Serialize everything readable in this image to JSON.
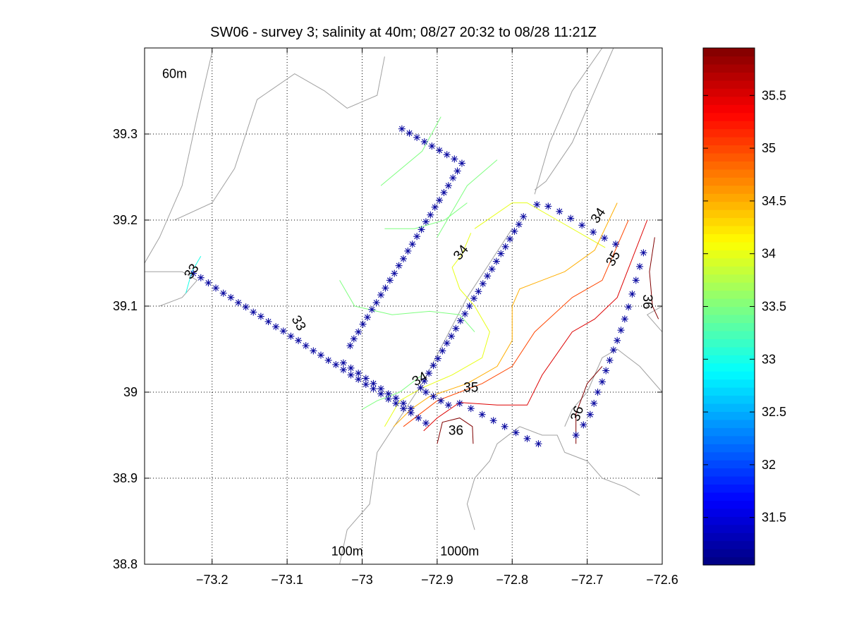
{
  "chart_data": {
    "type": "contour",
    "title": "SW06 - survey 3; salinity at 40m; 08/27 20:32 to 08/28 11:21Z",
    "xlabel": "",
    "ylabel": "",
    "xlim": [
      -73.29,
      -72.6
    ],
    "ylim": [
      38.8,
      39.4
    ],
    "x_ticks": [
      -73.2,
      -73.1,
      -73.0,
      -72.9,
      -72.8,
      -72.7,
      -72.6
    ],
    "x_tick_labels": [
      "−73.2",
      "−73.1",
      "−73",
      "−72.9",
      "−72.8",
      "−72.7",
      "−72.6"
    ],
    "y_ticks": [
      38.8,
      38.9,
      39.0,
      39.1,
      39.2,
      39.3
    ],
    "y_tick_labels": [
      "38.8",
      "38.9",
      "39",
      "39.1",
      "39.2",
      "39.3"
    ],
    "grid": true,
    "colorbar": {
      "range": [
        31.05,
        35.95
      ],
      "ticks": [
        31.5,
        32,
        32.5,
        33,
        33.5,
        34,
        34.5,
        35,
        35.5
      ],
      "tick_labels": [
        "31.5",
        "32",
        "32.5",
        "33",
        "33.5",
        "34",
        "34.5",
        "35",
        "35.5"
      ],
      "colormap": "jet",
      "levels": 64
    },
    "depth_labels": [
      {
        "text": "60m",
        "x": -73.25,
        "y": 39.37
      },
      {
        "text": "100m",
        "x": -73.02,
        "y": 38.815
      },
      {
        "text": "1000m",
        "x": -72.87,
        "y": 38.815
      }
    ],
    "stations": [
      [
        -73.225,
        39.138
      ],
      [
        -73.215,
        39.133
      ],
      [
        -73.205,
        39.127
      ],
      [
        -73.195,
        39.121
      ],
      [
        -73.185,
        39.115
      ],
      [
        -73.175,
        39.11
      ],
      [
        -73.165,
        39.104
      ],
      [
        -73.155,
        39.099
      ],
      [
        -73.145,
        39.093
      ],
      [
        -73.135,
        39.088
      ],
      [
        -73.125,
        39.082
      ],
      [
        -73.115,
        39.076
      ],
      [
        -73.105,
        39.071
      ],
      [
        -73.095,
        39.065
      ],
      [
        -73.085,
        39.06
      ],
      [
        -73.075,
        39.054
      ],
      [
        -73.065,
        39.048
      ],
      [
        -73.055,
        39.043
      ],
      [
        -73.045,
        39.037
      ],
      [
        -73.035,
        39.032
      ],
      [
        -73.025,
        39.026
      ],
      [
        -73.015,
        39.02
      ],
      [
        -73.005,
        39.015
      ],
      [
        -72.995,
        39.009
      ],
      [
        -72.985,
        39.004
      ],
      [
        -72.975,
        38.998
      ],
      [
        -72.965,
        38.992
      ],
      [
        -72.955,
        38.987
      ],
      [
        -72.945,
        38.981
      ],
      [
        -72.935,
        38.976
      ],
      [
        -72.925,
        38.97
      ],
      [
        -72.915,
        38.964
      ],
      [
        -73.025,
        39.034
      ],
      [
        -73.015,
        39.028
      ],
      [
        -73.005,
        39.022
      ],
      [
        -72.995,
        39.016
      ],
      [
        -72.985,
        39.01
      ],
      [
        -72.975,
        39.004
      ],
      [
        -72.965,
        38.998
      ],
      [
        -72.955,
        38.993
      ],
      [
        -72.945,
        38.987
      ],
      [
        -72.935,
        38.981
      ],
      [
        -72.922,
        39.005
      ],
      [
        -72.917,
        39.013
      ],
      [
        -72.911,
        39.022
      ],
      [
        -72.905,
        39.031
      ],
      [
        -72.899,
        39.039
      ],
      [
        -72.893,
        39.048
      ],
      [
        -72.887,
        39.057
      ],
      [
        -72.881,
        39.065
      ],
      [
        -72.875,
        39.074
      ],
      [
        -72.869,
        39.083
      ],
      [
        -72.863,
        39.091
      ],
      [
        -72.857,
        39.1
      ],
      [
        -72.851,
        39.109
      ],
      [
        -72.845,
        39.117
      ],
      [
        -72.839,
        39.126
      ],
      [
        -72.833,
        39.135
      ],
      [
        -72.827,
        39.143
      ],
      [
        -72.821,
        39.152
      ],
      [
        -72.815,
        39.161
      ],
      [
        -72.809,
        39.169
      ],
      [
        -72.803,
        39.178
      ],
      [
        -72.797,
        39.187
      ],
      [
        -72.791,
        39.195
      ],
      [
        -72.785,
        39.204
      ],
      [
        -72.767,
        39.218
      ],
      [
        -72.752,
        39.216
      ],
      [
        -72.737,
        39.21
      ],
      [
        -72.722,
        39.202
      ],
      [
        -72.707,
        39.194
      ],
      [
        -72.692,
        39.186
      ],
      [
        -72.677,
        39.179
      ],
      [
        -72.662,
        39.172
      ],
      [
        -72.625,
        39.162
      ],
      [
        -72.63,
        39.146
      ],
      [
        -72.635,
        39.13
      ],
      [
        -72.64,
        39.114
      ],
      [
        -72.645,
        39.099
      ],
      [
        -72.65,
        39.085
      ],
      [
        -72.655,
        39.072
      ],
      [
        -72.66,
        39.06
      ],
      [
        -72.665,
        39.049
      ],
      [
        -72.67,
        39.037
      ],
      [
        -72.675,
        39.025
      ],
      [
        -72.68,
        39.012
      ],
      [
        -72.686,
        39.0
      ],
      [
        -72.691,
        38.987
      ],
      [
        -72.696,
        38.974
      ],
      [
        -72.705,
        38.962
      ],
      [
        -72.715,
        38.95
      ],
      [
        -72.947,
        39.306
      ],
      [
        -72.937,
        39.301
      ],
      [
        -72.927,
        39.296
      ],
      [
        -72.917,
        39.291
      ],
      [
        -72.907,
        39.286
      ],
      [
        -72.897,
        39.281
      ],
      [
        -72.887,
        39.276
      ],
      [
        -72.877,
        39.271
      ],
      [
        -72.867,
        39.266
      ],
      [
        -72.873,
        39.257
      ],
      [
        -72.879,
        39.249
      ],
      [
        -72.885,
        39.24
      ],
      [
        -72.891,
        39.232
      ],
      [
        -72.897,
        39.223
      ],
      [
        -72.903,
        39.215
      ],
      [
        -72.909,
        39.206
      ],
      [
        -72.915,
        39.198
      ],
      [
        -72.921,
        39.189
      ],
      [
        -72.927,
        39.181
      ],
      [
        -72.933,
        39.172
      ],
      [
        -72.939,
        39.164
      ],
      [
        -72.945,
        39.155
      ],
      [
        -72.951,
        39.147
      ],
      [
        -72.957,
        39.138
      ],
      [
        -72.963,
        39.13
      ],
      [
        -72.969,
        39.121
      ],
      [
        -72.975,
        39.113
      ],
      [
        -72.981,
        39.104
      ],
      [
        -72.987,
        39.096
      ],
      [
        -72.993,
        39.087
      ],
      [
        -72.999,
        39.079
      ],
      [
        -73.005,
        39.07
      ],
      [
        -73.011,
        39.062
      ],
      [
        -73.016,
        39.054
      ],
      [
        -72.915,
        39.0
      ],
      [
        -72.905,
        38.995
      ],
      [
        -72.895,
        38.99
      ],
      [
        -72.885,
        38.985
      ],
      [
        -72.87,
        38.987
      ],
      [
        -72.855,
        38.981
      ],
      [
        -72.84,
        38.974
      ],
      [
        -72.825,
        38.967
      ],
      [
        -72.81,
        38.96
      ],
      [
        -72.795,
        38.953
      ],
      [
        -72.78,
        38.946
      ],
      [
        -72.765,
        38.94
      ]
    ],
    "contours": [
      {
        "level": 33,
        "label": "33",
        "points": [
          [
            -73.235,
            39.115
          ],
          [
            -73.227,
            39.14
          ],
          [
            -73.215,
            39.158
          ]
        ]
      },
      {
        "level": 33.5,
        "label": "",
        "points": [
          [
            -72.975,
            39.24
          ],
          [
            -72.92,
            39.28
          ],
          [
            -72.895,
            39.32
          ]
        ]
      },
      {
        "level": 33.5,
        "label": "",
        "points": [
          [
            -72.9,
            39.18
          ],
          [
            -72.86,
            39.24
          ],
          [
            -72.82,
            39.27
          ]
        ]
      },
      {
        "level": 33.5,
        "label": "",
        "points": [
          [
            -72.97,
            39.19
          ],
          [
            -72.93,
            39.19
          ],
          [
            -72.89,
            39.2
          ],
          [
            -72.86,
            39.22
          ]
        ]
      },
      {
        "level": 33.5,
        "label": "",
        "points": [
          [
            -73.03,
            39.13
          ],
          [
            -73.01,
            39.1
          ],
          [
            -72.96,
            39.09
          ],
          [
            -72.91,
            39.094
          ],
          [
            -72.87,
            39.09
          ],
          [
            -72.85,
            39.07
          ]
        ]
      },
      {
        "level": 33.5,
        "label": "",
        "points": [
          [
            -73.0,
            38.98
          ],
          [
            -72.98,
            38.99
          ],
          [
            -72.95,
            39.0
          ],
          [
            -72.92,
            39.02
          ]
        ]
      },
      {
        "level": 34,
        "label": "34",
        "points": [
          [
            -72.85,
            39.19
          ],
          [
            -72.8,
            39.22
          ],
          [
            -72.78,
            39.22
          ],
          [
            -72.74,
            39.2
          ],
          [
            -72.7,
            39.18
          ],
          [
            -72.676,
            39.168
          ]
        ]
      },
      {
        "level": 34,
        "label": "",
        "points": [
          [
            -72.855,
            39.185
          ],
          [
            -72.867,
            39.16
          ],
          [
            -72.88,
            39.145
          ],
          [
            -72.87,
            39.12
          ],
          [
            -72.85,
            39.1
          ],
          [
            -72.83,
            39.07
          ],
          [
            -72.84,
            39.04
          ],
          [
            -72.88,
            39.02
          ],
          [
            -72.92,
            39.005
          ],
          [
            -72.95,
            38.99
          ],
          [
            -72.97,
            38.96
          ]
        ]
      },
      {
        "level": 34.5,
        "label": "",
        "points": [
          [
            -72.66,
            39.22
          ],
          [
            -72.69,
            39.165
          ],
          [
            -72.73,
            39.14
          ],
          [
            -72.79,
            39.12
          ],
          [
            -72.8,
            39.1
          ],
          [
            -72.8,
            39.06
          ],
          [
            -72.82,
            39.03
          ],
          [
            -72.86,
            39.01
          ],
          [
            -72.91,
            38.995
          ],
          [
            -72.935,
            38.98
          ],
          [
            -72.958,
            38.96
          ]
        ]
      },
      {
        "level": 35,
        "label": "35",
        "points": [
          [
            -72.645,
            39.2
          ],
          [
            -72.68,
            39.13
          ],
          [
            -72.72,
            39.11
          ],
          [
            -72.77,
            39.07
          ],
          [
            -72.8,
            39.03
          ],
          [
            -72.84,
            39.01
          ],
          [
            -72.9,
            38.99
          ],
          [
            -72.945,
            38.96
          ]
        ]
      },
      {
        "level": 35.5,
        "label": "",
        "points": [
          [
            -72.62,
            39.2
          ],
          [
            -72.66,
            39.11
          ],
          [
            -72.69,
            39.085
          ],
          [
            -72.72,
            39.07
          ],
          [
            -72.76,
            39.02
          ],
          [
            -72.78,
            38.985
          ],
          [
            -72.82,
            38.985
          ],
          [
            -72.87,
            38.988
          ],
          [
            -72.9,
            38.97
          ],
          [
            -72.918,
            38.955
          ]
        ]
      },
      {
        "level": 36,
        "label": "36",
        "points": [
          [
            -72.61,
            39.18
          ],
          [
            -72.617,
            39.14
          ],
          [
            -72.613,
            39.1
          ],
          [
            -72.605,
            39.085
          ]
        ]
      },
      {
        "level": 36,
        "label": "36",
        "points": [
          [
            -72.715,
            38.94
          ],
          [
            -72.715,
            38.975
          ],
          [
            -72.7,
            39.01
          ],
          [
            -72.68,
            39.03
          ]
        ]
      },
      {
        "level": 36,
        "label": "36",
        "points": [
          [
            -72.9,
            38.94
          ],
          [
            -72.893,
            38.965
          ],
          [
            -72.87,
            38.97
          ],
          [
            -72.853,
            38.96
          ],
          [
            -72.852,
            38.94
          ]
        ]
      }
    ],
    "contour_labels": [
      {
        "text": "33",
        "x": -73.227,
        "y": 39.14,
        "rotate": -55
      },
      {
        "text": "33",
        "x": -73.085,
        "y": 39.08,
        "rotate": 60
      },
      {
        "text": "34",
        "x": -72.868,
        "y": 39.162,
        "rotate": -50
      },
      {
        "text": "34",
        "x": -72.923,
        "y": 39.015,
        "rotate": -30
      },
      {
        "text": "34",
        "x": -72.685,
        "y": 39.205,
        "rotate": -55
      },
      {
        "text": "35",
        "x": -72.855,
        "y": 39.005,
        "rotate": 0
      },
      {
        "text": "35",
        "x": -72.665,
        "y": 39.155,
        "rotate": -60
      },
      {
        "text": "36",
        "x": -72.62,
        "y": 39.105,
        "rotate": 90
      },
      {
        "text": "36",
        "x": -72.875,
        "y": 38.955,
        "rotate": 0
      },
      {
        "text": "36",
        "x": -72.713,
        "y": 38.975,
        "rotate": -70
      }
    ],
    "coastlines": [
      [
        [
          -73.29,
          39.15
        ],
        [
          -73.27,
          39.18
        ],
        [
          -73.24,
          39.24
        ],
        [
          -73.22,
          39.32
        ],
        [
          -73.2,
          39.395
        ]
      ],
      [
        [
          -73.25,
          39.2
        ],
        [
          -73.2,
          39.22
        ],
        [
          -73.17,
          39.26
        ],
        [
          -73.14,
          39.34
        ],
        [
          -73.09,
          39.37
        ],
        [
          -73.05,
          39.35
        ],
        [
          -73.02,
          39.33
        ],
        [
          -72.98,
          39.345
        ],
        [
          -72.97,
          39.39
        ]
      ],
      [
        [
          -73.29,
          39.14
        ],
        [
          -73.24,
          39.14
        ],
        [
          -73.22,
          39.13
        ],
        [
          -73.24,
          39.11
        ],
        [
          -73.27,
          39.1
        ]
      ],
      [
        [
          -72.8,
          39.19
        ],
        [
          -72.83,
          39.15
        ],
        [
          -72.86,
          39.11
        ],
        [
          -72.89,
          39.06
        ],
        [
          -72.92,
          39.01
        ],
        [
          -72.95,
          38.97
        ],
        [
          -72.98,
          38.93
        ],
        [
          -72.99,
          38.87
        ],
        [
          -73.02,
          38.84
        ],
        [
          -73.03,
          38.8
        ]
      ],
      [
        [
          -72.77,
          39.23
        ],
        [
          -72.76,
          39.26
        ],
        [
          -72.75,
          39.29
        ],
        [
          -72.72,
          39.35
        ],
        [
          -72.68,
          39.4
        ]
      ],
      [
        [
          -72.665,
          39.4
        ],
        [
          -72.7,
          39.33
        ],
        [
          -72.72,
          39.29
        ],
        [
          -72.755,
          39.245
        ],
        [
          -72.77,
          39.235
        ]
      ],
      [
        [
          -72.85,
          38.84
        ],
        [
          -72.86,
          38.87
        ],
        [
          -72.85,
          38.9
        ],
        [
          -72.83,
          38.92
        ],
        [
          -72.82,
          38.94
        ],
        [
          -72.79,
          38.96
        ],
        [
          -72.76,
          38.95
        ],
        [
          -72.74,
          38.95
        ],
        [
          -72.73,
          38.93
        ],
        [
          -72.7,
          38.92
        ],
        [
          -72.68,
          38.9
        ],
        [
          -72.65,
          38.89
        ],
        [
          -72.63,
          38.88
        ]
      ],
      [
        [
          -72.6,
          39.0
        ],
        [
          -72.63,
          39.03
        ],
        [
          -72.66,
          39.05
        ],
        [
          -72.68,
          39.04
        ],
        [
          -72.7,
          39.0
        ],
        [
          -72.72,
          38.98
        ],
        [
          -72.73,
          38.96
        ]
      ],
      [
        [
          -72.6,
          39.07
        ],
        [
          -72.62,
          39.09
        ],
        [
          -72.6,
          39.1
        ]
      ]
    ]
  }
}
